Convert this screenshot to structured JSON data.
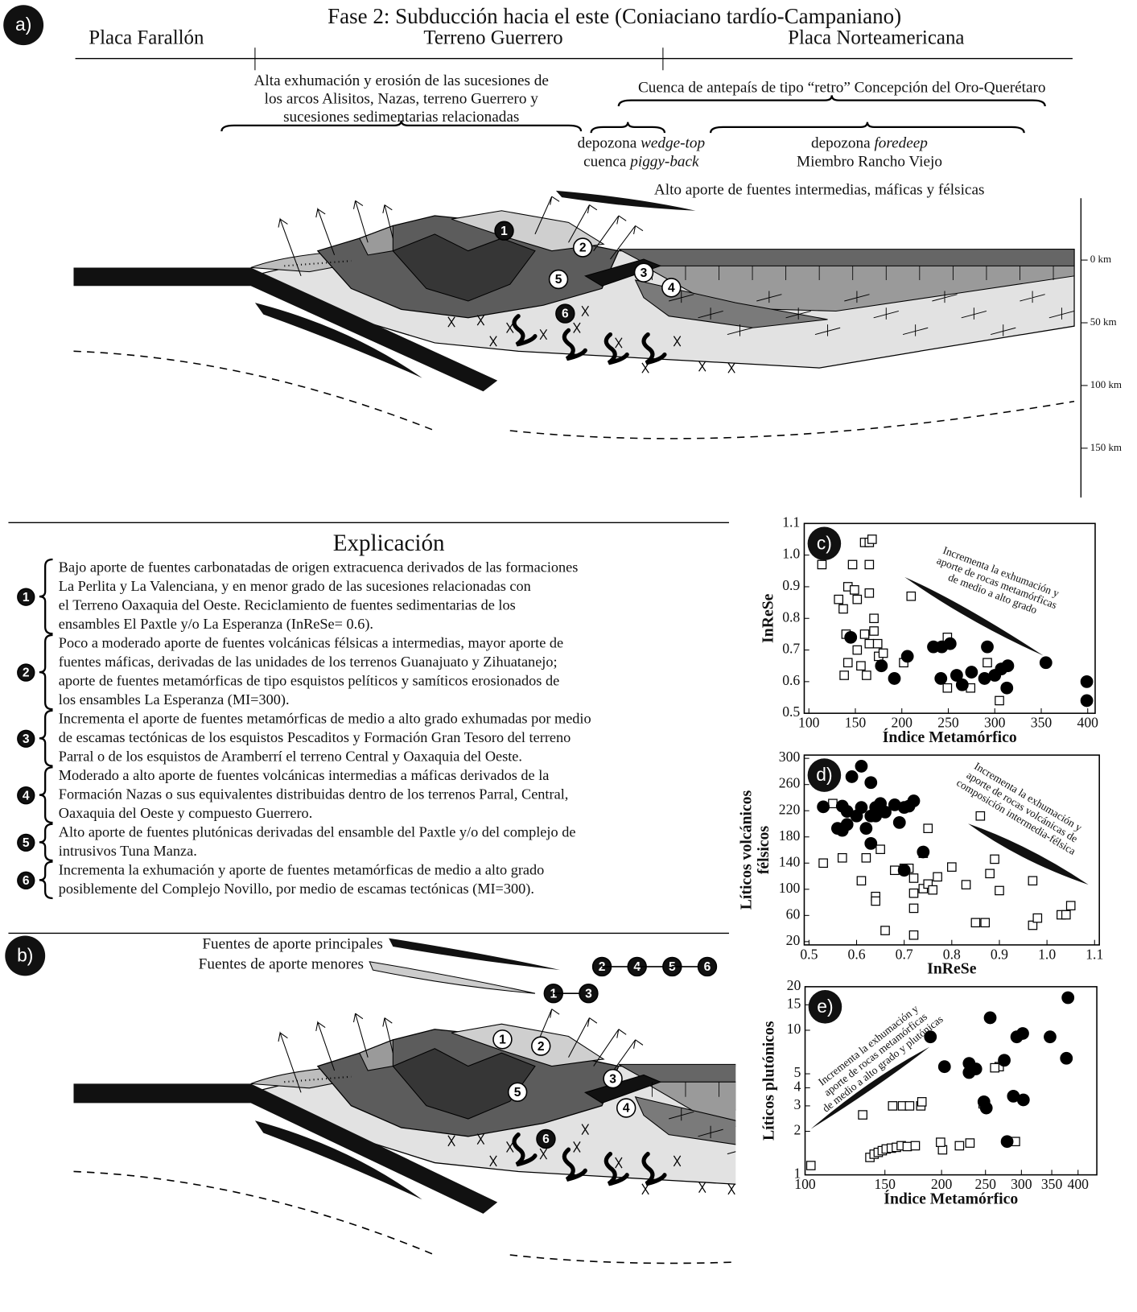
{
  "panel_a": {
    "label": "a)",
    "title": "Fase 2: Subducción hacia el este (Coniaciano tardío-Campaniano)",
    "regions": [
      "Placa Farallón",
      "Terreno Guerrero",
      "Placa Norteamericana"
    ],
    "exhumation_note": [
      "Alta exhumación y erosión de las sucesiones de",
      "los arcos Alisitos, Nazas, terreno Guerrero y",
      "sucesiones sedimentarias relacionadas"
    ],
    "foreland_basin": "Cuenca de antepaís de tipo “retro” Concepción del Oro-Querétaro",
    "wedge_top": [
      [
        "depozona ",
        "wedge-top"
      ],
      [
        "cuenca ",
        "piggy-back"
      ]
    ],
    "foredeep": [
      [
        "depozona ",
        "foredeep"
      ],
      [
        "Miembro Rancho Viejo"
      ]
    ],
    "supply_note": "Alto aporte de fuentes  intermedias, máficas y félsicas",
    "depth_ticks": [
      {
        "value": 0,
        "label": "0 km"
      },
      {
        "value": 50,
        "label": "50 km"
      },
      {
        "value": 100,
        "label": "100 km"
      },
      {
        "value": 150,
        "label": "150 km"
      }
    ]
  },
  "markers": [
    "1",
    "2",
    "3",
    "4",
    "5",
    "6"
  ],
  "explanation": {
    "title": "Explicación",
    "items": [
      [
        "Bajo aporte de fuentes carbonatadas de origen extracuenca derivados de las formaciones",
        "La Perlita y La Valenciana, y en menor grado de las sucesiones relacionadas con",
        "el Terreno Oaxaquia del Oeste. Reciclamiento de fuentes sedimentarias de los",
        "ensambles El Paxtle y/o La Esperanza (InReSe= 0.6)."
      ],
      [
        "Poco a moderado aporte de fuentes volcánicas félsicas a intermedias, mayor aporte de",
        "fuentes máficas, derivadas de las unidades de los terrenos Guanajuato y Zihuatanejo;",
        "aporte de fuentes metamórficas de tipo esquistos pelíticos y samíticos erosionados de",
        "los ensambles La Esperanza (MI=300)."
      ],
      [
        "Incrementa el aporte de fuentes metamórficas de medio a alto grado exhumadas por medio",
        "de escamas tectónicas de los esquistos Pescaditos y Formación Gran Tesoro del terreno",
        "Parral o de los esquistos de Aramberrí el terreno Central y Oaxaquia del Oeste."
      ],
      [
        "Moderado a alto aporte de fuentes volcánicas intermedias a máficas derivados de la",
        "Formación Nazas o sus equivalentes distribuidas dentro de los terrenos Parral, Central,",
        "Oaxaquia del Oeste y compuesto Guerrero."
      ],
      [
        "Alto aporte de fuentes plutónicas derivadas del ensamble del Paxtle y/o del complejo de",
        "intrusivos Tuna Manza."
      ],
      [
        "Incrementa la exhumación y aporte de fuentes metamórficas de medio a alto grado",
        "posiblemente del Complejo Novillo, por medio de escamas tectónicas (MI=300)."
      ]
    ]
  },
  "panel_b": {
    "label": "b)",
    "legend": [
      "Fuentes de aporte principales",
      "Fuentes de aporte menores"
    ],
    "main_sources": [
      "2",
      "4",
      "5",
      "6"
    ],
    "minor_sources": [
      "1",
      "3"
    ]
  },
  "chart_data": [
    {
      "type": "scatter",
      "label": "c)",
      "xlabel": "Índice Metamórfico",
      "ylabel": "InReSe",
      "xlim": [
        95,
        408
      ],
      "ylim": [
        0.5,
        1.1
      ],
      "xticks": [
        100,
        150,
        200,
        250,
        300,
        350,
        400
      ],
      "yticks": [
        0.5,
        0.6,
        0.7,
        0.8,
        0.9,
        {
          "value": 1,
          "label": "1.0"
        },
        1.1
      ],
      "annotation": [
        "Incrementa la exhumación y",
        "aporte de rocas metamórficas",
        "de medio a alto grado"
      ],
      "series": [
        {
          "marker": "square",
          "color": "#ffffff",
          "x": [
            114,
            132,
            137,
            142,
            149,
            152,
            160,
            165,
            168,
            165,
            147,
            165,
            170,
            170,
            160,
            140,
            142,
            156,
            162,
            138,
            152,
            165,
            174,
            175,
            210,
            202,
            249,
            249,
            274,
            292,
            305,
            180
          ],
          "values": [
            0.97,
            0.86,
            0.83,
            0.9,
            0.89,
            0.86,
            1.04,
            1.04,
            1.05,
            0.97,
            0.97,
            0.88,
            0.8,
            0.76,
            0.75,
            0.75,
            0.66,
            0.65,
            0.62,
            0.62,
            0.7,
            0.72,
            0.72,
            0.68,
            0.87,
            0.66,
            0.74,
            0.58,
            0.58,
            0.66,
            0.54,
            0.69
          ]
        },
        {
          "marker": "circle",
          "color": "#000000",
          "x": [
            145,
            178,
            192,
            206,
            234,
            243,
            252,
            242,
            259,
            265,
            275,
            292,
            289,
            300,
            307,
            314,
            313,
            355,
            399,
            399
          ],
          "values": [
            0.74,
            0.65,
            0.61,
            0.68,
            0.71,
            0.71,
            0.72,
            0.61,
            0.62,
            0.59,
            0.63,
            0.71,
            0.61,
            0.62,
            0.64,
            0.65,
            0.58,
            0.66,
            0.6,
            0.54
          ]
        }
      ]
    },
    {
      "type": "scatter",
      "label": "d)",
      "xlabel": "InReSe",
      "ylabel": [
        "Líticos volcánicos",
        "félsicos"
      ],
      "xlim": [
        0.49,
        1.11
      ],
      "ylim": [
        15,
        305
      ],
      "xticks": [
        0.5,
        0.6,
        0.7,
        0.8,
        0.9,
        {
          "value": 1,
          "label": "1.0"
        },
        1.1
      ],
      "yticks": [
        20,
        60,
        100,
        140,
        180,
        220,
        260,
        300
      ],
      "annotation": [
        "Incrementa la exhumación y",
        "aporte de rocas volcánicas de",
        "composición intermedia-félsica"
      ],
      "series": [
        {
          "marker": "square",
          "color": "#ffffff",
          "x": [
            0.53,
            0.55,
            0.57,
            0.61,
            0.64,
            0.64,
            0.62,
            0.65,
            0.66,
            0.68,
            0.7,
            0.71,
            0.72,
            0.72,
            0.72,
            0.72,
            0.74,
            0.75,
            0.74,
            0.75,
            0.76,
            0.77,
            0.8,
            0.83,
            0.86,
            0.85,
            0.87,
            0.89,
            0.88,
            0.9,
            0.97,
            0.97,
            0.98,
            1.03,
            1.04,
            1.05
          ],
          "values": [
            140,
            231,
            148,
            113,
            89,
            82,
            148,
            161,
            37,
            129,
            132,
            132,
            94,
            71,
            30,
            117,
            101,
            108,
            155,
            193,
            99,
            119,
            134,
            107,
            212,
            49,
            49,
            146,
            124,
            98,
            113,
            45,
            56,
            61,
            61,
            75
          ]
        },
        {
          "marker": "circle",
          "color": "#000000",
          "x": [
            0.53,
            0.57,
            0.58,
            0.57,
            0.59,
            0.61,
            0.63,
            0.58,
            0.6,
            0.61,
            0.63,
            0.64,
            0.64,
            0.65,
            0.66,
            0.68,
            0.69,
            0.7,
            0.71,
            0.72,
            0.62,
            0.63,
            0.7,
            0.74,
            0.56
          ],
          "values": [
            226,
            227,
            199,
            190,
            272,
            288,
            263,
            219,
            212,
            225,
            212,
            225,
            212,
            231,
            218,
            229,
            202,
            225,
            227,
            235,
            193,
            170,
            129,
            157,
            193
          ]
        }
      ]
    },
    {
      "type": "scatter",
      "label": "e)",
      "xlabel": "Índice Metamórfico",
      "ylabel": "Líticos plutónicos",
      "xscale": "log",
      "yscale": "log",
      "xlim": [
        100,
        440
      ],
      "ylim": [
        1,
        20
      ],
      "xticks": [
        100,
        150,
        200,
        250,
        300,
        350,
        400
      ],
      "yticks": [
        1,
        2,
        3,
        4,
        5,
        10,
        15,
        20
      ],
      "annotation": [
        "Incrementa la exhumación y",
        "aporte de rocas metamórficas",
        "de medio a alto grado y plutónicas"
      ],
      "series": [
        {
          "marker": "square",
          "color": "#ffffff",
          "x": [
            103,
            134,
            156,
            164,
            170,
            180,
            181,
            139,
            142,
            145,
            148,
            151,
            155,
            159,
            163,
            168,
            175,
            201,
            199,
            219,
            231,
            247,
            268,
            262,
            291
          ],
          "values": [
            1.16,
            2.6,
            3,
            3,
            3,
            3,
            3.2,
            1.32,
            1.39,
            1.43,
            1.47,
            1.51,
            1.53,
            1.55,
            1.59,
            1.57,
            1.59,
            1.49,
            1.68,
            1.59,
            1.66,
            3.1,
            5.6,
            5.5,
            1.7
          ]
        },
        {
          "marker": "circle",
          "color": "#000000",
          "x": [
            189,
            203,
            230,
            230,
            238,
            256,
            275,
            293,
            302,
            347,
            380,
            377,
            288,
            303,
            279,
            248,
            251
          ],
          "values": [
            9,
            5.6,
            5.9,
            5.1,
            5.4,
            12.2,
            6.2,
            9,
            9.5,
            9,
            16.8,
            6.4,
            3.5,
            3.3,
            1.7,
            3.2,
            2.9
          ]
        }
      ]
    }
  ]
}
